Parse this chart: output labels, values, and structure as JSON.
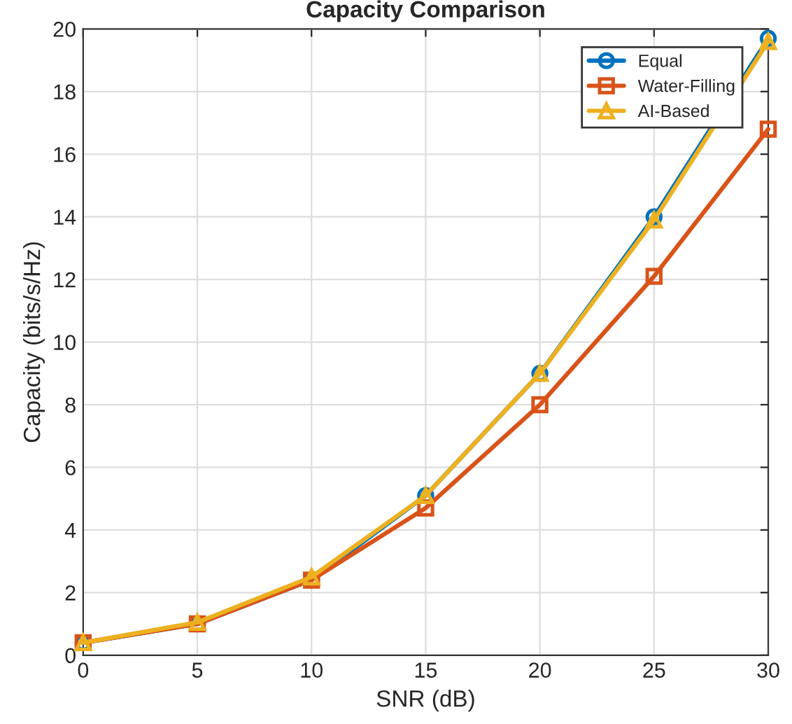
{
  "chart_data": {
    "type": "line",
    "title": "Capacity Comparison",
    "xlabel": "SNR (dB)",
    "ylabel": "Capacity (bits/s/Hz)",
    "x": [
      0,
      5,
      10,
      15,
      20,
      25,
      30
    ],
    "series": [
      {
        "name": "Equal",
        "color": "#0072bd",
        "marker": "circle",
        "values": [
          0.4,
          1.0,
          2.4,
          5.1,
          9.0,
          14.0,
          19.7
        ]
      },
      {
        "name": "Water-Filling",
        "color": "#d95319",
        "marker": "square",
        "values": [
          0.4,
          1.0,
          2.4,
          4.7,
          8.0,
          12.1,
          16.8
        ]
      },
      {
        "name": "AI-Based",
        "color": "#edb120",
        "marker": "triangle",
        "values": [
          0.4,
          1.05,
          2.5,
          5.1,
          9.0,
          13.9,
          19.6
        ]
      }
    ],
    "xlim": [
      0,
      30
    ],
    "xticks": [
      0,
      5,
      10,
      15,
      20,
      25,
      30
    ],
    "ylim": [
      0,
      20
    ],
    "yticks": [
      0,
      2,
      4,
      6,
      8,
      10,
      12,
      14,
      16,
      18,
      20
    ],
    "grid": true,
    "legend": "top right",
    "line_style": "solid"
  }
}
